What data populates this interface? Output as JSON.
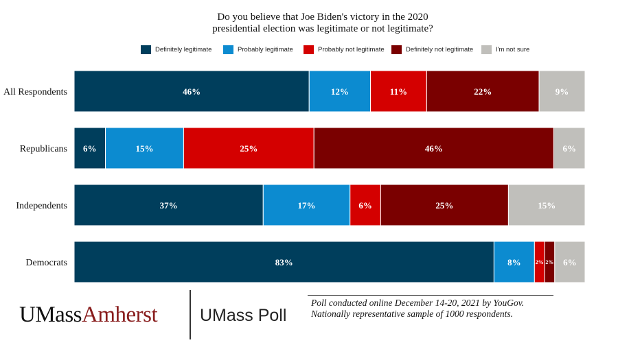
{
  "chart_data": {
    "type": "bar",
    "orientation": "horizontal",
    "stacked": true,
    "title": "Do you believe that Joe Biden's victory in the 2020 presidential election was legitimate or not legitimate?",
    "title_lines": [
      "Do you believe that Joe Biden's victory in the 2020",
      "presidential election was legitimate or not legitimate?"
    ],
    "categories": [
      "All Respondents",
      "Republicans",
      "Independents",
      "Democrats"
    ],
    "series": [
      {
        "name": "Definitely legitimate",
        "color": "#003e5c",
        "values": [
          46,
          6,
          37,
          83
        ],
        "labels": [
          "46%",
          "6%",
          "37%",
          "83%"
        ]
      },
      {
        "name": "Probably legitimate",
        "color": "#0c8bd0",
        "values": [
          12,
          15,
          17,
          8
        ],
        "labels": [
          "12%",
          "15%",
          "17%",
          "8%"
        ]
      },
      {
        "name": "Probably not legitimate",
        "color": "#d40000",
        "values": [
          11,
          25,
          6,
          2
        ],
        "labels": [
          "11%",
          "25%",
          "6%",
          "2%"
        ]
      },
      {
        "name": "Definitely not legitimate",
        "color": "#7a0000",
        "values": [
          22,
          46,
          25,
          2
        ],
        "labels": [
          "22%",
          "46%",
          "25%",
          "2%"
        ]
      },
      {
        "name": "I'm not sure",
        "color": "#c0bfbb",
        "values": [
          9,
          6,
          15,
          6
        ],
        "labels": [
          "9%",
          "6%",
          "15%",
          "6%"
        ]
      }
    ],
    "legend_position": "top",
    "grid": false,
    "xlim": [
      0,
      100
    ]
  },
  "footer": {
    "logo_part1": "UMass",
    "logo_part2": "Amherst",
    "poll_name": "UMass Poll",
    "note_line1": "Poll conducted online December 14-20, 2021 by YouGov.",
    "note_line2": "Nationally representative sample of 1000 respondents."
  }
}
